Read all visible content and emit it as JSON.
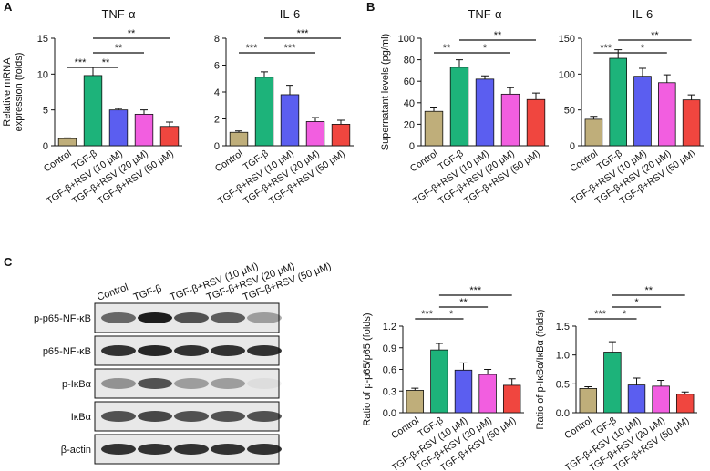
{
  "panels": [
    "A",
    "B",
    "C"
  ],
  "blot": {
    "lanes": [
      "Control",
      "TGF-β",
      "TGF-β+RSV (10 μM)",
      "TGF-β+RSV (20 μM)",
      "TGF-β+RSV (50 μM)"
    ],
    "rows": [
      "p-p65-NF-κB",
      "p65-NF-κB",
      "p-IκBα",
      "IκBα",
      "β-actin"
    ]
  },
  "chart_data": [
    {
      "type": "bar",
      "title": "TNF-α",
      "ylabel": [
        "Relative mRNA",
        "expression (folds)"
      ],
      "categories": [
        "Control",
        "TGF-β",
        "TGF-β+RSV (10 μM)",
        "TGF-β+RSV (20 μM)",
        "TGF-β+RSV (50 μM)"
      ],
      "values": [
        1.0,
        9.8,
        5.0,
        4.4,
        2.7
      ],
      "errors": [
        0.1,
        1.2,
        0.2,
        0.6,
        0.6
      ],
      "colors": [
        "#bfae7a",
        "#1db37a",
        "#5b5ef0",
        "#f25ee0",
        "#f0463f"
      ],
      "ylim": [
        0,
        15
      ],
      "yticks": [
        0,
        5,
        10,
        15
      ],
      "significance": [
        {
          "label": "***",
          "between": [
            "Control",
            "TGF-β"
          ]
        },
        {
          "label": "**",
          "between": [
            "TGF-β",
            "TGF-β+RSV (10 μM)"
          ]
        },
        {
          "label": "**",
          "between": [
            "TGF-β",
            "TGF-β+RSV (20 μM)"
          ]
        },
        {
          "label": "**",
          "between": [
            "TGF-β",
            "TGF-β+RSV (50 μM)"
          ]
        }
      ]
    },
    {
      "type": "bar",
      "title": "IL-6",
      "ylabel": [],
      "categories": [
        "Control",
        "TGF-β",
        "TGF-β+RSV (10 μM)",
        "TGF-β+RSV (20 μM)",
        "TGF-β+RSV (50 μM)"
      ],
      "values": [
        1.0,
        5.1,
        3.8,
        1.8,
        1.6
      ],
      "errors": [
        0.1,
        0.4,
        0.7,
        0.3,
        0.3
      ],
      "colors": [
        "#bfae7a",
        "#1db37a",
        "#5b5ef0",
        "#f25ee0",
        "#f0463f"
      ],
      "ylim": [
        0,
        8
      ],
      "yticks": [
        0,
        2,
        4,
        6,
        8
      ],
      "significance": [
        {
          "label": "***",
          "between": [
            "Control",
            "TGF-β"
          ]
        },
        {
          "label": "***",
          "between": [
            "TGF-β",
            "TGF-β+RSV (20 μM)"
          ]
        },
        {
          "label": "***",
          "between": [
            "TGF-β",
            "TGF-β+RSV (50 μM)"
          ]
        }
      ]
    },
    {
      "type": "bar",
      "title": "TNF-α",
      "ylabel": [
        "Supernatant  levels (pg/ml)"
      ],
      "categories": [
        "Control",
        "TGF-β",
        "TGF-β+RSV (10 μM)",
        "TGF-β+RSV (20 μM)",
        "TGF-β+RSV (50 μM)"
      ],
      "values": [
        32,
        73,
        62,
        48,
        43
      ],
      "errors": [
        4,
        7,
        3,
        6,
        6
      ],
      "colors": [
        "#bfae7a",
        "#1db37a",
        "#5b5ef0",
        "#f25ee0",
        "#f0463f"
      ],
      "ylim": [
        0,
        100
      ],
      "yticks": [
        0,
        20,
        40,
        60,
        80,
        100
      ],
      "significance": [
        {
          "label": "**",
          "between": [
            "Control",
            "TGF-β"
          ]
        },
        {
          "label": "*",
          "between": [
            "TGF-β",
            "TGF-β+RSV (20 μM)"
          ]
        },
        {
          "label": "**",
          "between": [
            "TGF-β",
            "TGF-β+RSV (50 μM)"
          ]
        }
      ]
    },
    {
      "type": "bar",
      "title": "IL-6",
      "ylabel": [],
      "categories": [
        "Control",
        "TGF-β",
        "TGF-β+RSV (10 μM)",
        "TGF-β+RSV (20 μM)",
        "TGF-β+RSV (50 μM)"
      ],
      "values": [
        37,
        122,
        97,
        88,
        64
      ],
      "errors": [
        4,
        12,
        11,
        11,
        7
      ],
      "colors": [
        "#bfae7a",
        "#1db37a",
        "#5b5ef0",
        "#f25ee0",
        "#f0463f"
      ],
      "ylim": [
        0,
        150
      ],
      "yticks": [
        0,
        50,
        100,
        150
      ],
      "significance": [
        {
          "label": "***",
          "between": [
            "Control",
            "TGF-β"
          ]
        },
        {
          "label": "*",
          "between": [
            "TGF-β",
            "TGF-β+RSV (20 μM)"
          ]
        },
        {
          "label": "**",
          "between": [
            "TGF-β",
            "TGF-β+RSV (50 μM)"
          ]
        }
      ]
    },
    {
      "type": "bar",
      "ylabel": [
        "Ratio of p-p65/p65 (folds)"
      ],
      "categories": [
        "Control",
        "TGF-β",
        "TGF-β+RSV (10 μM)",
        "TGF-β+RSV (20 μM)",
        "TGF-β+RSV (50 μM)"
      ],
      "values": [
        0.31,
        0.87,
        0.59,
        0.53,
        0.38
      ],
      "errors": [
        0.03,
        0.09,
        0.1,
        0.07,
        0.09
      ],
      "colors": [
        "#bfae7a",
        "#1db37a",
        "#5b5ef0",
        "#f25ee0",
        "#f0463f"
      ],
      "ylim": [
        0,
        1.2
      ],
      "yticks": [
        {
          "value": 0,
          "label": "0.0"
        },
        0.3,
        0.6,
        0.9,
        1.2
      ],
      "significance": [
        {
          "label": "***",
          "between": [
            "Control",
            "TGF-β"
          ]
        },
        {
          "label": "*",
          "between": [
            "TGF-β",
            "TGF-β+RSV (10 μM)"
          ]
        },
        {
          "label": "**",
          "between": [
            "TGF-β",
            "TGF-β+RSV (20 μM)"
          ]
        },
        {
          "label": "***",
          "between": [
            "TGF-β",
            "TGF-β+RSV (50 μM)"
          ]
        }
      ]
    },
    {
      "type": "bar",
      "ylabel": [
        "Ratio of p-IκBα/IκBα (folds)"
      ],
      "categories": [
        "Control",
        "TGF-β",
        "TGF-β+RSV (10 μM)",
        "TGF-β+RSV (20 μM)",
        "TGF-β+RSV (50 μM)"
      ],
      "values": [
        0.42,
        1.05,
        0.48,
        0.46,
        0.32
      ],
      "errors": [
        0.03,
        0.18,
        0.12,
        0.1,
        0.04
      ],
      "colors": [
        "#bfae7a",
        "#1db37a",
        "#5b5ef0",
        "#f25ee0",
        "#f0463f"
      ],
      "ylim": [
        0,
        1.5
      ],
      "yticks": [
        {
          "value": 0,
          "label": "0.0"
        },
        0.5,
        {
          "value": 1,
          "label": "1.0"
        },
        1.5
      ],
      "significance": [
        {
          "label": "***",
          "between": [
            "Control",
            "TGF-β"
          ]
        },
        {
          "label": "*",
          "between": [
            "TGF-β",
            "TGF-β+RSV (10 μM)"
          ]
        },
        {
          "label": "*",
          "between": [
            "TGF-β",
            "TGF-β+RSV (20 μM)"
          ]
        },
        {
          "label": "**",
          "between": [
            "TGF-β",
            "TGF-β+RSV (50 μM)"
          ]
        }
      ]
    }
  ]
}
